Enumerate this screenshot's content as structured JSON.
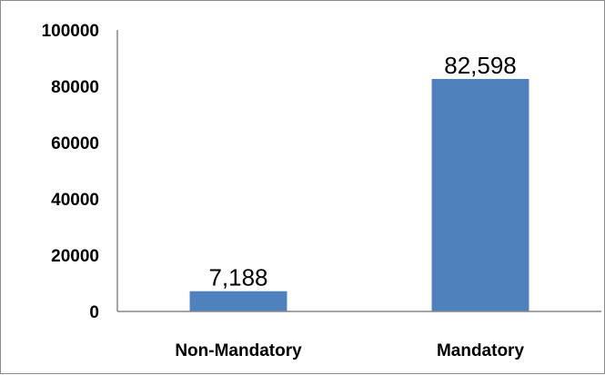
{
  "chart_data": {
    "type": "bar",
    "categories": [
      "Non-Mandatory",
      "Mandatory"
    ],
    "values": [
      7188,
      82598
    ],
    "data_labels": [
      "7,188",
      "82,598"
    ],
    "ylim": [
      0,
      100000
    ],
    "yticks": [
      "0",
      "20000",
      "40000",
      "60000",
      "80000",
      "100000"
    ],
    "grid": false,
    "legend": "none",
    "colors": {
      "bar": "#4f81bd",
      "axis": "#868686"
    }
  }
}
